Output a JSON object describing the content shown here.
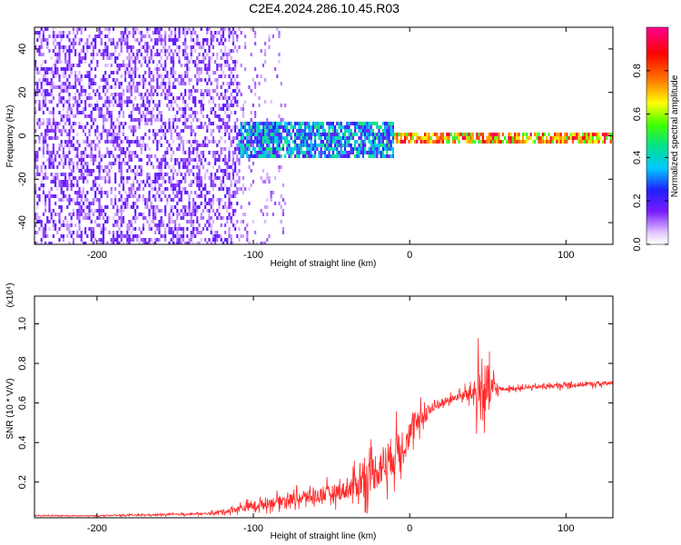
{
  "title": "C2E4.2024.286.10.45.R03",
  "chart_data": [
    {
      "type": "heatmap",
      "title": "C2E4.2024.286.10.45.R03",
      "xlabel": "Height of straight line (km)",
      "ylabel": "Frequency (Hz)",
      "xlim": [
        -240,
        130
      ],
      "ylim": [
        -50,
        50
      ],
      "xticks": [
        -200,
        -100,
        0,
        100
      ],
      "yticks": [
        -40,
        -20,
        0,
        20,
        40
      ],
      "colorbar": {
        "label": "Normalized spectral amplitude",
        "range": [
          0.0,
          1.0
        ],
        "ticks": [
          "0.0",
          "0.2",
          "0.4",
          "0.6",
          "0.8"
        ],
        "tick_values": [
          0.0,
          0.2,
          0.4,
          0.6,
          0.8
        ],
        "colors": [
          "#ffffff",
          "#e6ccff",
          "#7a1cff",
          "#2020ff",
          "#00c8ff",
          "#00e090",
          "#40ff00",
          "#ffff00",
          "#ff8000",
          "#ff0000",
          "#ff0090"
        ],
        "stops": [
          0.0,
          0.05,
          0.15,
          0.25,
          0.35,
          0.45,
          0.55,
          0.65,
          0.75,
          0.88,
          1.0
        ]
      },
      "bands": [
        {
          "x_range": [
            -240,
            -110
          ],
          "freq_range": [
            -50,
            50
          ],
          "description": "broadband noise",
          "amplitude": [
            0.05,
            0.2
          ]
        },
        {
          "x_range": [
            -110,
            -10
          ],
          "freq_range": [
            -10,
            8
          ],
          "description": "signal emerging",
          "amplitude": [
            0.15,
            0.5
          ]
        },
        {
          "x_range": [
            -10,
            130
          ],
          "freq_range": [
            -2,
            2
          ],
          "description": "narrow carrier line",
          "amplitude": [
            0.5,
            0.95
          ]
        }
      ]
    },
    {
      "type": "line",
      "xlabel": "Height of straight line (km)",
      "ylabel": "SNR (10 * V/V)",
      "multiplier_label": "(x10⁴)",
      "xlim": [
        -240,
        130
      ],
      "ylim": [
        0.02,
        1.14
      ],
      "xticks": [
        -200,
        -100,
        0,
        100
      ],
      "yticks": [
        0.2,
        0.4,
        0.6,
        0.8,
        1.0
      ],
      "ytick_labels": [
        "0.2",
        "0.4",
        "0.6",
        "0.8",
        "1.0"
      ],
      "color": "#ff2a2a",
      "series": [
        {
          "name": "SNR",
          "x": [
            -240,
            -200,
            -160,
            -130,
            -120,
            -100,
            -80,
            -60,
            -40,
            -30,
            -20,
            -10,
            0,
            10,
            20,
            30,
            40,
            45,
            50,
            55,
            60,
            80,
            100,
            130
          ],
          "y": [
            0.03,
            0.03,
            0.035,
            0.04,
            0.05,
            0.08,
            0.11,
            0.13,
            0.16,
            0.21,
            0.27,
            0.34,
            0.44,
            0.55,
            0.6,
            0.63,
            0.65,
            0.66,
            0.66,
            0.67,
            0.67,
            0.68,
            0.69,
            0.7
          ],
          "noise_spread": [
            0.005,
            0.005,
            0.008,
            0.01,
            0.02,
            0.05,
            0.06,
            0.08,
            0.1,
            0.18,
            0.22,
            0.22,
            0.15,
            0.1,
            0.05,
            0.03,
            0.1,
            0.35,
            0.3,
            0.05,
            0.02,
            0.02,
            0.03,
            0.02
          ]
        }
      ]
    }
  ]
}
